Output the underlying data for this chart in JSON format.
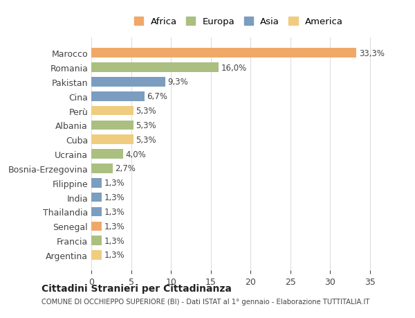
{
  "countries": [
    "Marocco",
    "Romania",
    "Pakistan",
    "Cina",
    "Perù",
    "Albania",
    "Cuba",
    "Ucraina",
    "Bosnia-Erzegovina",
    "Filippine",
    "India",
    "Thailandia",
    "Senegal",
    "Francia",
    "Argentina"
  ],
  "values": [
    33.3,
    16.0,
    9.3,
    6.7,
    5.3,
    5.3,
    5.3,
    4.0,
    2.7,
    1.3,
    1.3,
    1.3,
    1.3,
    1.3,
    1.3
  ],
  "labels": [
    "33,3%",
    "16,0%",
    "9,3%",
    "6,7%",
    "5,3%",
    "5,3%",
    "5,3%",
    "4,0%",
    "2,7%",
    "1,3%",
    "1,3%",
    "1,3%",
    "1,3%",
    "1,3%",
    "1,3%"
  ],
  "continents": [
    "Africa",
    "Europa",
    "Asia",
    "Asia",
    "America",
    "Europa",
    "America",
    "Europa",
    "Europa",
    "Asia",
    "Asia",
    "Asia",
    "Africa",
    "Europa",
    "America"
  ],
  "colors": {
    "Africa": "#F0A868",
    "Europa": "#AABF80",
    "Asia": "#7B9DC0",
    "America": "#F0CC80"
  },
  "legend_order": [
    "Africa",
    "Europa",
    "Asia",
    "America"
  ],
  "title": "Cittadini Stranieri per Cittadinanza",
  "subtitle": "COMUNE DI OCCHIEPPO SUPERIORE (BI) - Dati ISTAT al 1° gennaio - Elaborazione TUTTITALIA.IT",
  "xlim": [
    0,
    37
  ],
  "xticks": [
    0,
    5,
    10,
    15,
    20,
    25,
    30,
    35
  ],
  "background_color": "#ffffff",
  "grid_color": "#dddddd"
}
